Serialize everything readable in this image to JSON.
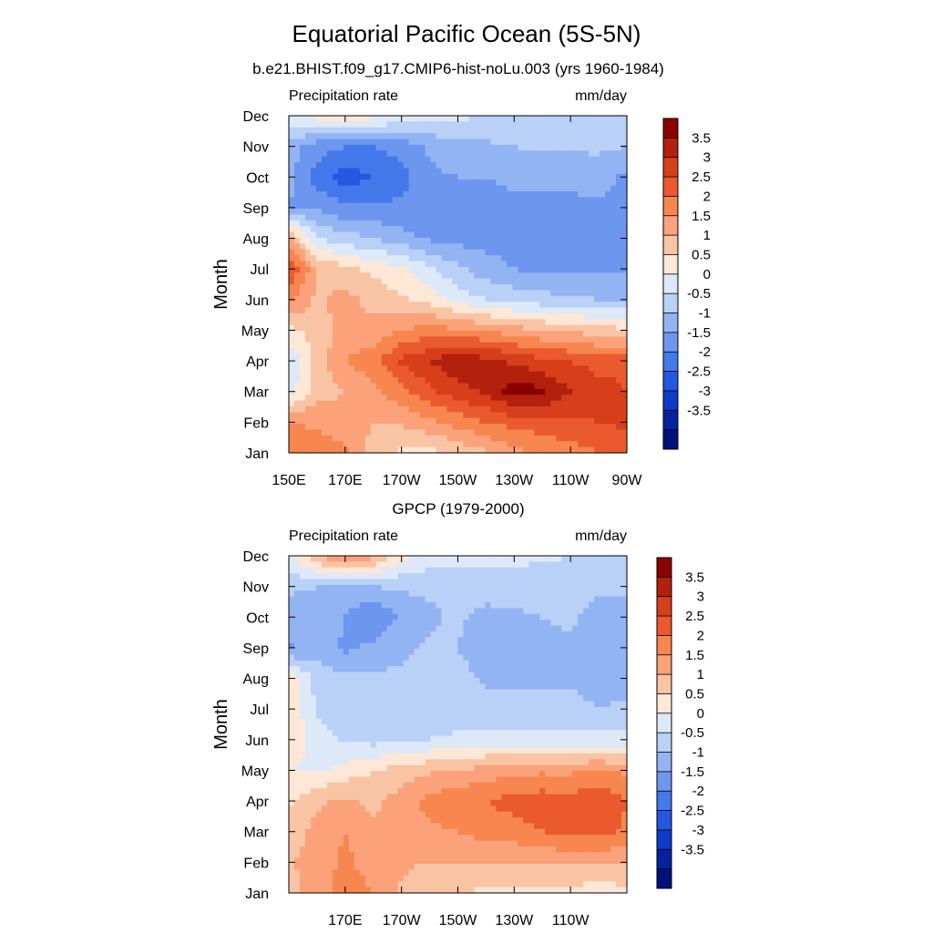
{
  "title": "Equatorial Pacific Ocean (5S-5N)",
  "colorbar": {
    "labels": [
      "3.5",
      "3",
      "2.5",
      "2",
      "1.5",
      "1",
      "0.5",
      "0",
      "-0.5",
      "-1",
      "-1.5",
      "-2",
      "-2.5",
      "-3",
      "-3.5"
    ],
    "colors": [
      "#8b0000",
      "#b3200d",
      "#d73f1b",
      "#ea5a2e",
      "#f7864f",
      "#fba27a",
      "#f9c4a4",
      "#fde7d6",
      "#dde9f8",
      "#b9d0f7",
      "#93b4f3",
      "#6d96ef",
      "#4478eb",
      "#2458e2",
      "#0f3bc9",
      "#06239e",
      "#00127a"
    ]
  },
  "chart_data": [
    {
      "type": "heatmap",
      "subtitle": "b.e21.BHIST.f09_g17.CMIP6-hist-noLu.003 (yrs 1960-1984)",
      "left_label": "Precipitation rate",
      "right_label": "mm/day",
      "ylabel": "Month",
      "xlabel": "",
      "x_ticks": [
        "150E",
        "170E",
        "170W",
        "150W",
        "130W",
        "110W",
        "90W"
      ],
      "y_ticks": [
        "Jan",
        "Feb",
        "Mar",
        "Apr",
        "May",
        "Jun",
        "Jul",
        "Aug",
        "Sep",
        "Oct",
        "Nov",
        "Dec"
      ],
      "x_range": [
        150,
        270
      ],
      "x_columns": [
        150,
        160,
        170,
        180,
        190,
        200,
        210,
        220,
        230,
        240,
        250,
        260,
        270
      ],
      "months": [
        "Jan",
        "Feb",
        "Mar",
        "Apr",
        "May",
        "Jun",
        "Jul",
        "Aug",
        "Sep",
        "Oct",
        "Nov",
        "Dec"
      ],
      "z": [
        [
          2.0,
          1.8,
          1.6,
          0.8,
          0.4,
          0.3,
          0.6,
          0.9,
          1.3,
          1.6,
          1.8,
          2.0,
          2.3
        ],
        [
          1.5,
          1.4,
          1.2,
          1.0,
          1.1,
          1.4,
          1.7,
          2.0,
          2.2,
          2.3,
          2.4,
          2.5,
          2.6
        ],
        [
          -0.3,
          0.8,
          1.0,
          1.4,
          1.8,
          2.4,
          2.8,
          3.1,
          3.8,
          3.6,
          3.0,
          2.7,
          2.5
        ],
        [
          -0.4,
          0.7,
          1.5,
          1.8,
          2.6,
          3.0,
          3.4,
          3.2,
          2.9,
          2.6,
          2.5,
          2.3,
          2.4
        ],
        [
          0.3,
          0.8,
          1.1,
          1.2,
          1.5,
          1.7,
          1.6,
          1.4,
          1.2,
          1.0,
          0.9,
          0.7,
          0.6
        ],
        [
          1.6,
          0.9,
          1.2,
          0.8,
          0.6,
          0.3,
          -0.2,
          -0.5,
          -0.7,
          -0.8,
          -0.9,
          -1.0,
          -1.1
        ],
        [
          2.6,
          1.0,
          0.6,
          0.4,
          0.1,
          -0.4,
          -0.9,
          -1.3,
          -1.5,
          -1.6,
          -1.6,
          -1.6,
          -1.6
        ],
        [
          1.2,
          -0.5,
          -0.8,
          -1.0,
          -1.3,
          -1.6,
          -1.7,
          -1.7,
          -1.7,
          -1.7,
          -1.7,
          -1.7,
          -1.7
        ],
        [
          -1.5,
          -1.6,
          -1.9,
          -1.9,
          -1.9,
          -1.8,
          -1.7,
          -1.7,
          -1.6,
          -1.6,
          -1.6,
          -1.6,
          -1.6
        ],
        [
          -1.4,
          -2.2,
          -2.8,
          -2.5,
          -2.2,
          -1.6,
          -1.5,
          -1.5,
          -1.4,
          -1.4,
          -1.4,
          -1.3,
          -1.6
        ],
        [
          -1.2,
          -1.8,
          -2.0,
          -2.0,
          -1.8,
          -1.4,
          -1.2,
          -1.1,
          -1.0,
          -0.9,
          -0.9,
          -0.9,
          -1.0
        ],
        [
          -0.2,
          0.2,
          0.4,
          0.2,
          -0.1,
          -0.3,
          -0.4,
          -0.5,
          -0.6,
          -0.6,
          -0.5,
          -0.5,
          -0.5
        ]
      ]
    },
    {
      "type": "heatmap",
      "subtitle": "GPCP (1979-2000)",
      "left_label": "Precipitation rate",
      "right_label": "mm/day",
      "ylabel": "Month",
      "xlabel": "",
      "x_ticks": [
        "170E",
        "170W",
        "150W",
        "130W",
        "110W"
      ],
      "y_ticks": [
        "Jan",
        "Feb",
        "Mar",
        "Apr",
        "May",
        "Jun",
        "Jul",
        "Aug",
        "Sep",
        "Oct",
        "Nov",
        "Dec"
      ],
      "x_range": [
        150,
        270
      ],
      "x_columns": [
        150,
        160,
        170,
        180,
        190,
        200,
        210,
        220,
        230,
        240,
        250,
        260,
        270
      ],
      "months": [
        "Jan",
        "Feb",
        "Mar",
        "Apr",
        "May",
        "Jun",
        "Jul",
        "Aug",
        "Sep",
        "Oct",
        "Nov",
        "Dec"
      ],
      "z": [
        [
          0.8,
          1.2,
          1.7,
          1.5,
          0.9,
          0.6,
          0.5,
          0.4,
          0.3,
          0.3,
          0.3,
          0.2,
          0.3
        ],
        [
          0.9,
          1.3,
          1.6,
          1.3,
          1.1,
          1.0,
          1.0,
          1.0,
          1.0,
          1.1,
          1.1,
          1.1,
          1.1
        ],
        [
          0.6,
          1.2,
          1.5,
          1.1,
          1.2,
          1.4,
          1.5,
          1.7,
          1.8,
          2.0,
          2.1,
          2.2,
          1.9
        ],
        [
          0.4,
          0.9,
          1.1,
          0.9,
          1.2,
          1.7,
          1.9,
          2.0,
          2.2,
          2.3,
          2.2,
          2.4,
          2.0
        ],
        [
          0.0,
          -0.1,
          0.2,
          0.5,
          0.7,
          0.9,
          1.0,
          1.2,
          1.3,
          1.4,
          1.4,
          1.5,
          1.4
        ],
        [
          0.4,
          -0.3,
          -0.6,
          -0.7,
          -0.6,
          -0.5,
          -0.4,
          -0.3,
          -0.3,
          -0.3,
          -0.3,
          -0.3,
          -0.3
        ],
        [
          0.5,
          -0.6,
          -0.8,
          -0.8,
          -0.8,
          -0.8,
          -0.8,
          -0.8,
          -0.8,
          -0.8,
          -0.8,
          -1.0,
          -0.9
        ],
        [
          0.3,
          -0.7,
          -0.9,
          -0.9,
          -0.9,
          -0.8,
          -0.8,
          -1.1,
          -1.1,
          -1.1,
          -1.1,
          -1.3,
          -1.2
        ],
        [
          -1.6,
          -1.2,
          -1.6,
          -1.4,
          -1.1,
          -0.9,
          -1.0,
          -1.4,
          -1.3,
          -1.2,
          -1.1,
          -1.3,
          -1.2
        ],
        [
          -1.3,
          -1.2,
          -1.5,
          -2.0,
          -1.4,
          -1.1,
          -0.9,
          -1.2,
          -1.1,
          -1.0,
          -0.9,
          -1.2,
          -1.3
        ],
        [
          -0.9,
          -1.0,
          -1.1,
          -1.0,
          -0.9,
          -0.9,
          -0.8,
          -0.7,
          -0.7,
          -0.8,
          -0.8,
          -0.9,
          -0.9
        ],
        [
          -0.1,
          1.0,
          1.6,
          1.2,
          0.2,
          -0.2,
          -0.3,
          -0.4,
          -0.4,
          -0.4,
          -0.5,
          -0.5,
          -0.5
        ]
      ]
    }
  ]
}
